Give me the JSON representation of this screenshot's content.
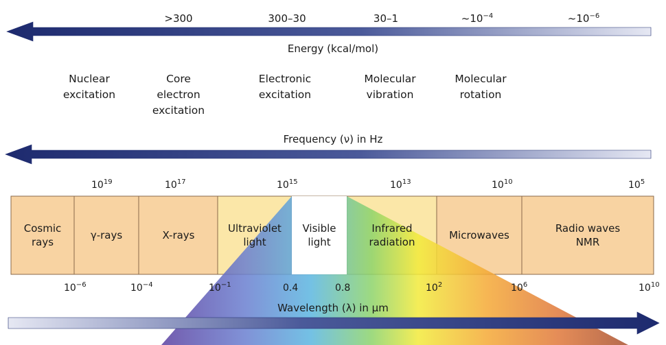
{
  "energy": {
    "title": "Energy (kcal/mol)",
    "values": [
      ">300",
      "300–30",
      "30–1",
      "~10",
      "~10"
    ],
    "value_exponents": [
      "",
      "",
      "",
      "−4",
      "−6"
    ]
  },
  "processes": [
    {
      "lines": [
        "Nuclear",
        "excitation"
      ]
    },
    {
      "lines": [
        "Core",
        "electron",
        "excitation"
      ]
    },
    {
      "lines": [
        "Electronic",
        "excitation"
      ]
    },
    {
      "lines": [
        "Molecular",
        "vibration"
      ]
    },
    {
      "lines": [
        "Molecular",
        "rotation"
      ]
    }
  ],
  "frequency": {
    "title": "Frequency (ν) in Hz",
    "base": "10",
    "exponents": [
      "19",
      "17",
      "15",
      "13",
      "10",
      "5"
    ]
  },
  "bands": [
    {
      "lines": [
        "Cosmic",
        "rays"
      ],
      "color": "#f8d3a2"
    },
    {
      "lines": [
        "γ-rays"
      ],
      "color": "#f8d3a2"
    },
    {
      "lines": [
        "X-rays"
      ],
      "color": "#f8d3a2"
    },
    {
      "lines": [
        "Ultraviolet",
        "light"
      ],
      "color": "#fbe7a8"
    },
    {
      "lines": [
        "Visible",
        "light"
      ],
      "color": "#ffffff"
    },
    {
      "lines": [
        "Infrared",
        "radiation"
      ],
      "color": "#fbe7a8"
    },
    {
      "lines": [
        "Microwaves"
      ],
      "color": "#f8d3a2"
    },
    {
      "lines": [
        "Radio waves",
        "NMR"
      ],
      "color": "#f8d3a2"
    }
  ],
  "wavelength": {
    "title": "Wavelength (λ) in μm",
    "ticks": [
      {
        "base": "10",
        "exp": "−6"
      },
      {
        "base": "10",
        "exp": "−4"
      },
      {
        "base": "10",
        "exp": "−1"
      },
      {
        "base": "0.4",
        "exp": ""
      },
      {
        "base": "0.8",
        "exp": ""
      },
      {
        "base": "10",
        "exp": "2"
      },
      {
        "base": "10",
        "exp": "6"
      },
      {
        "base": "10",
        "exp": "10"
      }
    ]
  },
  "colors": {
    "arrow_dark": "#1d2a6e",
    "arrow_light": "#e6e8f3",
    "band_border": "#8a6a4a"
  }
}
